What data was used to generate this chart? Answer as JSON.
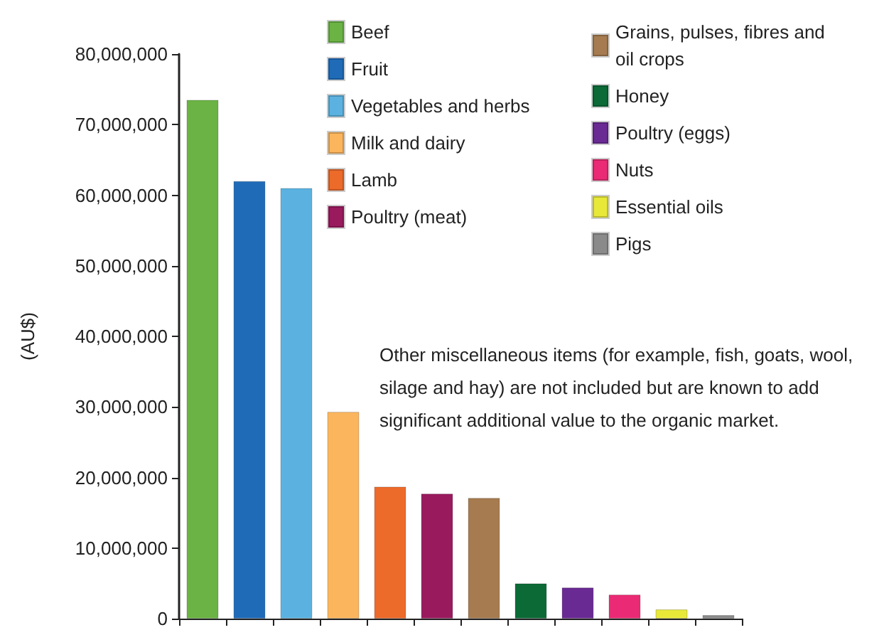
{
  "chart_data": {
    "type": "bar",
    "ylabel": "(AU$)",
    "categories": [
      null,
      null,
      null,
      null,
      null,
      null,
      null,
      null,
      null,
      null,
      null,
      null
    ],
    "ylim": [
      0,
      80000000
    ],
    "yticks": [
      {
        "value": 0,
        "label": "0"
      },
      {
        "value": 10000000,
        "label": "10,000,000"
      },
      {
        "value": 20000000,
        "label": "20,000,000"
      },
      {
        "value": 30000000,
        "label": "30,000,000"
      },
      {
        "value": 40000000,
        "label": "40,000,000"
      },
      {
        "value": 50000000,
        "label": "50,000,000"
      },
      {
        "value": 60000000,
        "label": "60,000,000"
      },
      {
        "value": 70000000,
        "label": "70,000,000"
      },
      {
        "value": 80000000,
        "label": "80,000,000"
      }
    ],
    "grid": false,
    "legend": "top right",
    "annotations": [
      "Other miscellaneous items (for example, fish, goats, wool, silage and hay) are not included but are known to add significant additional value to the organic market."
    ],
    "series": [
      {
        "name": "Beef",
        "color": "#6ab344",
        "values": [
          73500000,
          null,
          null,
          null,
          null,
          null,
          null,
          null,
          null,
          null,
          null,
          null
        ]
      },
      {
        "name": "Fruit",
        "color": "#1f6bb8",
        "values": [
          null,
          62000000,
          null,
          null,
          null,
          null,
          null,
          null,
          null,
          null,
          null,
          null
        ]
      },
      {
        "name": "Vegetables and herbs",
        "color": "#5bb2e0",
        "values": [
          null,
          null,
          61000000,
          null,
          null,
          null,
          null,
          null,
          null,
          null,
          null,
          null
        ]
      },
      {
        "name": "Milk and dairy",
        "color": "#fbb55c",
        "values": [
          null,
          null,
          null,
          29300000,
          null,
          null,
          null,
          null,
          null,
          null,
          null,
          null
        ]
      },
      {
        "name": "Lamb",
        "color": "#ec6a2a",
        "values": [
          null,
          null,
          null,
          null,
          18700000,
          null,
          null,
          null,
          null,
          null,
          null,
          null
        ]
      },
      {
        "name": "Poultry (meat)",
        "color": "#9a1a5e",
        "values": [
          null,
          null,
          null,
          null,
          null,
          17700000,
          null,
          null,
          null,
          null,
          null,
          null
        ]
      },
      {
        "name": "Grains, pulses, fibres and oil crops",
        "color": "#a67b4f",
        "values": [
          null,
          null,
          null,
          null,
          null,
          null,
          17100000,
          null,
          null,
          null,
          null,
          null
        ]
      },
      {
        "name": "Honey",
        "color": "#0b6a36",
        "values": [
          null,
          null,
          null,
          null,
          null,
          null,
          null,
          5000000,
          null,
          null,
          null,
          null
        ]
      },
      {
        "name": "Poultry (eggs)",
        "color": "#6a2a94",
        "values": [
          null,
          null,
          null,
          null,
          null,
          null,
          null,
          null,
          4400000,
          null,
          null,
          null
        ]
      },
      {
        "name": "Nuts",
        "color": "#ea2a74",
        "values": [
          null,
          null,
          null,
          null,
          null,
          null,
          null,
          null,
          null,
          3400000,
          null,
          null
        ]
      },
      {
        "name": "Essential oils",
        "color": "#e8e838",
        "values": [
          null,
          null,
          null,
          null,
          null,
          null,
          null,
          null,
          null,
          null,
          1300000,
          null
        ]
      },
      {
        "name": "Pigs",
        "color": "#8a8a8a",
        "values": [
          null,
          null,
          null,
          null,
          null,
          null,
          null,
          null,
          null,
          null,
          null,
          500000
        ]
      }
    ]
  }
}
